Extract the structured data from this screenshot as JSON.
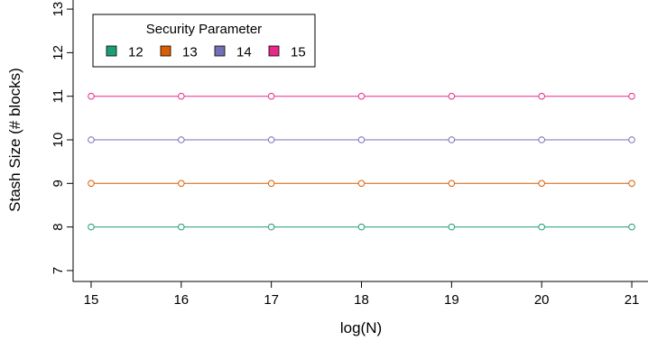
{
  "chart_data": {
    "type": "line",
    "title": "",
    "xlabel": "log(N)",
    "ylabel": "Stash Size (# blocks)",
    "x": [
      15,
      16,
      17,
      18,
      19,
      20,
      21
    ],
    "xlim": [
      14.8,
      21.2
    ],
    "ylim": [
      6.75,
      13.25
    ],
    "xticks": [
      15,
      16,
      17,
      18,
      19,
      20,
      21
    ],
    "yticks": [
      7,
      8,
      9,
      10,
      11,
      12,
      13
    ],
    "grid": false,
    "marker": "open-circle",
    "legend": {
      "title": "Security Parameter",
      "placement": "top-left",
      "orientation": "horizontal"
    },
    "series": [
      {
        "name": "12",
        "color": "#1B9E77",
        "values": [
          8,
          8,
          8,
          8,
          8,
          8,
          8
        ]
      },
      {
        "name": "13",
        "color": "#D95F02",
        "values": [
          9,
          9,
          9,
          9,
          9,
          9,
          9
        ]
      },
      {
        "name": "14",
        "color": "#7570B3",
        "values": [
          10,
          10,
          10,
          10,
          10,
          10,
          10
        ]
      },
      {
        "name": "15",
        "color": "#E7298A",
        "values": [
          11,
          11,
          11,
          11,
          11,
          11,
          11
        ]
      }
    ]
  }
}
